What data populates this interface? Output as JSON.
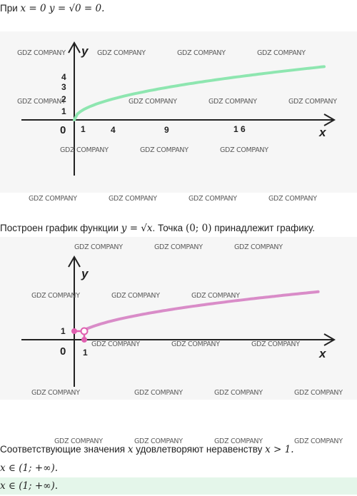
{
  "intro": {
    "prefix": "При",
    "math": "x = 0  y = √0 = 0."
  },
  "graph1": {
    "y_label": "y",
    "x_label": "x",
    "origin": "0",
    "y_ticks": [
      "4",
      "3",
      "2",
      "1"
    ],
    "x_ticks": [
      "1",
      "4",
      "9",
      "1 6"
    ],
    "curve_color": "#8ee6b0"
  },
  "statement": {
    "prefix": "Построен график функции",
    "func": "y = √x",
    "point_text": ". Точка",
    "point": "(0;  0)",
    "suffix": "принадлежит графику."
  },
  "graph2": {
    "y_label": "y",
    "x_label": "x",
    "origin": "0",
    "y_tick": "1",
    "x_tick": "1",
    "curve_color": "#d98cc8",
    "point_color": "#e060b0"
  },
  "conclusion": {
    "prefix": "Соответствующие значения",
    "var": "x",
    "mid": "удовлетворяют неравенству",
    "ineq": "x  >  1."
  },
  "answer_line": "x ∈ (1;  +∞).",
  "final_answer": "x ∈ (1;  +∞).",
  "watermark": "GDZ COMPANY"
}
